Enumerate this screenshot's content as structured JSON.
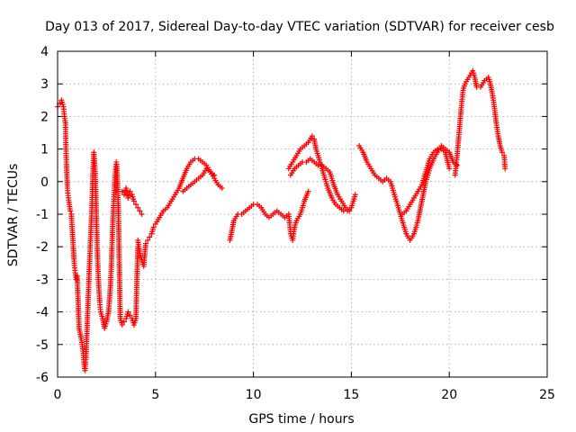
{
  "chart_data": {
    "type": "scatter",
    "title": "Day 013 of 2017, Sidereal Day-to-day VTEC variation (SDTVAR) for receiver cesb",
    "xlabel": "GPS time / hours",
    "ylabel": "SDTVAR / TECUs",
    "xlim": [
      0,
      25
    ],
    "ylim": [
      -6,
      4
    ],
    "xticks": [
      "0",
      "5",
      "10",
      "15",
      "20",
      "25"
    ],
    "yticks": [
      "-6",
      "-5",
      "-4",
      "-3",
      "-2",
      "-1",
      "0",
      "1",
      "2",
      "3",
      "4"
    ],
    "grid": true,
    "marker": "+",
    "color": "#ff0000",
    "series": [
      {
        "points": [
          [
            0.0,
            2.3
          ],
          [
            0.1,
            2.4
          ],
          [
            0.2,
            2.5
          ],
          [
            0.3,
            2.3
          ],
          [
            0.35,
            2.0
          ],
          [
            0.4,
            1.8
          ],
          [
            0.42,
            1.2
          ],
          [
            0.45,
            0.6
          ],
          [
            0.5,
            -0.2
          ],
          [
            0.55,
            -0.5
          ],
          [
            0.6,
            -0.7
          ],
          [
            0.65,
            -0.9
          ],
          [
            0.7,
            -1.0
          ],
          [
            0.75,
            -1.5
          ],
          [
            0.8,
            -2.0
          ],
          [
            0.85,
            -2.5
          ],
          [
            0.9,
            -2.8
          ],
          [
            0.95,
            -3.0
          ],
          [
            1.0,
            -2.9
          ],
          [
            1.1,
            -4.5
          ],
          [
            1.2,
            -4.8
          ],
          [
            1.3,
            -5.2
          ],
          [
            1.35,
            -5.6
          ],
          [
            1.4,
            -5.8
          ],
          [
            1.45,
            -5.4
          ],
          [
            1.5,
            -4.6
          ],
          [
            1.55,
            -3.8
          ],
          [
            1.6,
            -3.0
          ],
          [
            1.65,
            -2.2
          ],
          [
            1.7,
            -1.5
          ],
          [
            1.75,
            -0.8
          ],
          [
            1.8,
            0.2
          ],
          [
            1.85,
            0.9
          ],
          [
            1.9,
            0.5
          ],
          [
            1.95,
            -0.3
          ],
          [
            2.0,
            -1.5
          ],
          [
            2.05,
            -2.5
          ],
          [
            2.1,
            -3.2
          ],
          [
            2.15,
            -3.7
          ],
          [
            2.2,
            -4.0
          ],
          [
            2.3,
            -4.2
          ],
          [
            2.4,
            -4.5
          ],
          [
            2.5,
            -4.3
          ],
          [
            2.6,
            -4.0
          ],
          [
            2.7,
            -3.2
          ],
          [
            2.75,
            -2.5
          ],
          [
            2.8,
            -1.5
          ],
          [
            2.85,
            -0.8
          ],
          [
            2.9,
            -0.2
          ],
          [
            2.95,
            0.3
          ],
          [
            3.0,
            0.6
          ],
          [
            3.05,
            0.2
          ],
          [
            3.1,
            -0.8
          ],
          [
            3.2,
            -4.2
          ],
          [
            3.3,
            -4.4
          ],
          [
            3.4,
            -4.3
          ],
          [
            3.5,
            -4.2
          ],
          [
            3.6,
            -4.0
          ],
          [
            3.7,
            -4.1
          ],
          [
            3.8,
            -4.2
          ],
          [
            3.9,
            -4.4
          ],
          [
            4.0,
            -4.2
          ],
          [
            4.05,
            -3.0
          ],
          [
            4.1,
            -2.0
          ],
          [
            3.3,
            -0.3
          ],
          [
            3.4,
            -0.4
          ],
          [
            3.5,
            -0.2
          ],
          [
            3.6,
            -0.5
          ],
          [
            3.7,
            -0.3
          ],
          [
            3.8,
            -0.4
          ],
          [
            3.9,
            -0.6
          ],
          [
            4.0,
            -0.7
          ],
          [
            4.1,
            -0.8
          ],
          [
            4.2,
            -0.9
          ],
          [
            4.3,
            -1.0
          ],
          [
            4.1,
            -1.8
          ],
          [
            4.2,
            -2.2
          ],
          [
            4.3,
            -2.4
          ],
          [
            4.4,
            -2.6
          ],
          [
            4.5,
            -1.9
          ],
          [
            4.6,
            -1.8
          ],
          [
            4.7,
            -1.7
          ],
          [
            4.8,
            -1.6
          ],
          [
            4.9,
            -1.4
          ],
          [
            5.0,
            -1.3
          ],
          [
            5.2,
            -1.1
          ],
          [
            5.4,
            -0.9
          ],
          [
            5.6,
            -0.8
          ],
          [
            5.8,
            -0.6
          ],
          [
            6.0,
            -0.4
          ],
          [
            6.2,
            -0.2
          ],
          [
            6.4,
            0.1
          ],
          [
            6.6,
            0.4
          ],
          [
            6.8,
            0.6
          ],
          [
            7.0,
            0.7
          ],
          [
            7.2,
            0.7
          ],
          [
            7.4,
            0.6
          ],
          [
            7.6,
            0.5
          ],
          [
            7.8,
            0.3
          ],
          [
            8.0,
            0.1
          ],
          [
            8.2,
            -0.1
          ],
          [
            8.4,
            -0.2
          ],
          [
            6.4,
            -0.3
          ],
          [
            6.6,
            -0.2
          ],
          [
            6.8,
            -0.1
          ],
          [
            7.0,
            0.0
          ],
          [
            7.2,
            0.1
          ],
          [
            7.4,
            0.2
          ],
          [
            7.6,
            0.4
          ],
          [
            7.8,
            0.3
          ],
          [
            8.0,
            0.2
          ],
          [
            8.8,
            -1.8
          ],
          [
            8.9,
            -1.5
          ],
          [
            9.0,
            -1.2
          ],
          [
            9.2,
            -1.0
          ],
          [
            9.4,
            -1.0
          ],
          [
            9.6,
            -0.9
          ],
          [
            9.8,
            -0.8
          ],
          [
            10.0,
            -0.7
          ],
          [
            10.2,
            -0.7
          ],
          [
            10.4,
            -0.8
          ],
          [
            10.6,
            -1.0
          ],
          [
            10.8,
            -1.1
          ],
          [
            11.0,
            -1.0
          ],
          [
            11.2,
            -0.9
          ],
          [
            11.4,
            -1.0
          ],
          [
            11.6,
            -1.1
          ],
          [
            11.8,
            -1.0
          ],
          [
            11.9,
            -1.6
          ],
          [
            12.0,
            -1.8
          ],
          [
            12.1,
            -1.4
          ],
          [
            12.2,
            -1.2
          ],
          [
            12.4,
            -1.0
          ],
          [
            12.6,
            -0.6
          ],
          [
            12.8,
            -0.3
          ],
          [
            11.8,
            0.4
          ],
          [
            12.0,
            0.6
          ],
          [
            12.2,
            0.8
          ],
          [
            12.4,
            1.0
          ],
          [
            12.6,
            1.1
          ],
          [
            12.8,
            1.2
          ],
          [
            13.0,
            1.4
          ],
          [
            13.1,
            1.3
          ],
          [
            13.2,
            1.0
          ],
          [
            13.4,
            0.6
          ],
          [
            13.6,
            0.2
          ],
          [
            13.8,
            -0.2
          ],
          [
            14.0,
            -0.5
          ],
          [
            14.2,
            -0.7
          ],
          [
            14.4,
            -0.8
          ],
          [
            14.6,
            -0.9
          ],
          [
            14.8,
            -0.9
          ],
          [
            15.0,
            -0.8
          ],
          [
            15.2,
            -0.4
          ],
          [
            11.9,
            0.2
          ],
          [
            12.1,
            0.4
          ],
          [
            12.3,
            0.5
          ],
          [
            12.5,
            0.6
          ],
          [
            12.7,
            0.6
          ],
          [
            12.9,
            0.7
          ],
          [
            13.1,
            0.6
          ],
          [
            13.3,
            0.5
          ],
          [
            13.5,
            0.5
          ],
          [
            13.7,
            0.4
          ],
          [
            13.9,
            0.3
          ],
          [
            14.1,
            -0.1
          ],
          [
            14.3,
            -0.4
          ],
          [
            14.5,
            -0.6
          ],
          [
            14.7,
            -0.8
          ],
          [
            14.9,
            -0.9
          ],
          [
            15.4,
            1.1
          ],
          [
            15.6,
            0.9
          ],
          [
            15.8,
            0.6
          ],
          [
            16.0,
            0.4
          ],
          [
            16.2,
            0.2
          ],
          [
            16.4,
            0.1
          ],
          [
            16.6,
            0.0
          ],
          [
            16.8,
            0.1
          ],
          [
            17.0,
            0.0
          ],
          [
            17.2,
            -0.4
          ],
          [
            17.4,
            -0.8
          ],
          [
            17.6,
            -1.2
          ],
          [
            17.8,
            -1.6
          ],
          [
            18.0,
            -1.8
          ],
          [
            18.2,
            -1.6
          ],
          [
            18.4,
            -1.2
          ],
          [
            18.6,
            -0.6
          ],
          [
            18.8,
            0.0
          ],
          [
            19.0,
            0.4
          ],
          [
            19.2,
            0.7
          ],
          [
            19.4,
            0.9
          ],
          [
            19.6,
            1.1
          ],
          [
            19.8,
            1.0
          ],
          [
            20.0,
            0.9
          ],
          [
            20.2,
            0.6
          ],
          [
            20.4,
            0.5
          ],
          [
            17.6,
            -1.0
          ],
          [
            17.8,
            -0.9
          ],
          [
            18.0,
            -0.7
          ],
          [
            18.2,
            -0.5
          ],
          [
            18.4,
            -0.3
          ],
          [
            18.6,
            -0.1
          ],
          [
            18.8,
            0.3
          ],
          [
            19.0,
            0.7
          ],
          [
            19.2,
            0.9
          ],
          [
            19.4,
            1.0
          ],
          [
            19.6,
            1.0
          ],
          [
            19.8,
            0.9
          ],
          [
            20.0,
            0.4
          ],
          [
            20.3,
            0.2
          ],
          [
            20.4,
            0.8
          ],
          [
            20.5,
            1.5
          ],
          [
            20.6,
            2.2
          ],
          [
            20.7,
            2.8
          ],
          [
            20.8,
            3.0
          ],
          [
            21.0,
            3.2
          ],
          [
            21.2,
            3.4
          ],
          [
            21.3,
            3.2
          ],
          [
            21.4,
            2.9
          ],
          [
            21.6,
            2.9
          ],
          [
            21.8,
            3.1
          ],
          [
            22.0,
            3.2
          ],
          [
            22.1,
            3.0
          ],
          [
            22.2,
            2.7
          ],
          [
            22.3,
            2.3
          ],
          [
            22.4,
            1.8
          ],
          [
            22.5,
            1.4
          ],
          [
            22.6,
            1.1
          ],
          [
            22.7,
            0.9
          ],
          [
            22.8,
            0.8
          ],
          [
            22.85,
            0.4
          ]
        ]
      }
    ]
  }
}
